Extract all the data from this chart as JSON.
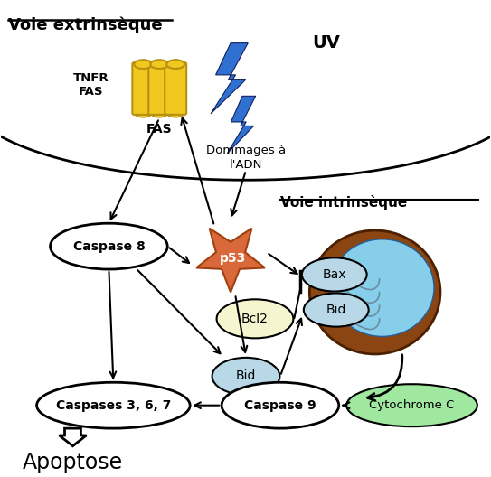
{
  "figsize": [
    5.43,
    5.28
  ],
  "dpi": 100,
  "background_color": "#ffffff",
  "ellipse_fill_white": "#ffffff",
  "ellipse_fill_light": "#b8d8e8",
  "ellipse_stroke": "#000000",
  "p53_color": "#d9693a",
  "bcl2_fill": "#f5f5d0",
  "fas_receptor_color": "#f0c820",
  "fas_receptor_dark": "#b89010",
  "uv_color": "#3070d0",
  "uv_dark": "#102060",
  "cytochrome_fill": "#a0e8a0",
  "mito_outer": "#8b4513",
  "mito_inner": "#87ceeb",
  "title1": "Voie extrinsèque",
  "title2": "Voie intrinsèque",
  "label_uv": "UV",
  "label_tnfr": "TNFR",
  "label_fas_side": "FAS",
  "label_fas_bot": "FAS",
  "label_dommages": "Dommages à\nl'ADN",
  "label_caspase8": "Caspase 8",
  "label_p53": "p53",
  "label_bcl2": "Bcl2",
  "label_bid_mid": "Bid",
  "label_bax": "Bax",
  "label_bid_mito": "Bid",
  "label_cytochrome": "Cytochrome C",
  "label_caspase9": "Caspase 9",
  "label_casp367": "Caspases 3, 6, 7",
  "label_apoptose": "Apoptose"
}
